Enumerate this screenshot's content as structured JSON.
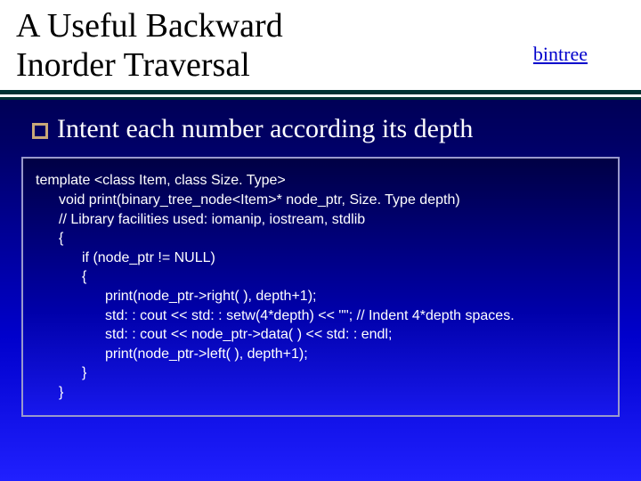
{
  "header": {
    "title_line1": "A Useful Backward",
    "title_line2": "Inorder Traversal",
    "link_label": "bintree"
  },
  "bullet": {
    "text": "Intent each number according its depth"
  },
  "code": {
    "l0": "template <class Item, class Size. Type>",
    "l1": "void print(binary_tree_node<Item>* node_ptr, Size. Type depth)",
    "l2": "// Library facilities used: iomanip, iostream, stdlib",
    "l3": "{",
    "l4": "if (node_ptr != NULL)",
    "l5": "{",
    "l6": "print(node_ptr->right( ), depth+1);",
    "l7": "std: : cout << std: : setw(4*depth) << \"\"; // Indent 4*depth spaces.",
    "l8": "std: : cout << node_ptr->data( ) << std: : endl;",
    "l9": "print(node_ptr->left( ),  depth+1);",
    "l10": "}",
    "l11": "}"
  },
  "colors": {
    "title_color": "#000000",
    "link_color": "#0000cc",
    "bullet_border": "#c8a878",
    "bullet_text": "#ffffff",
    "code_text": "#ffffff",
    "code_border": "#9999cc",
    "rule_dark": "#003333",
    "rule_light": "#ffffff"
  }
}
